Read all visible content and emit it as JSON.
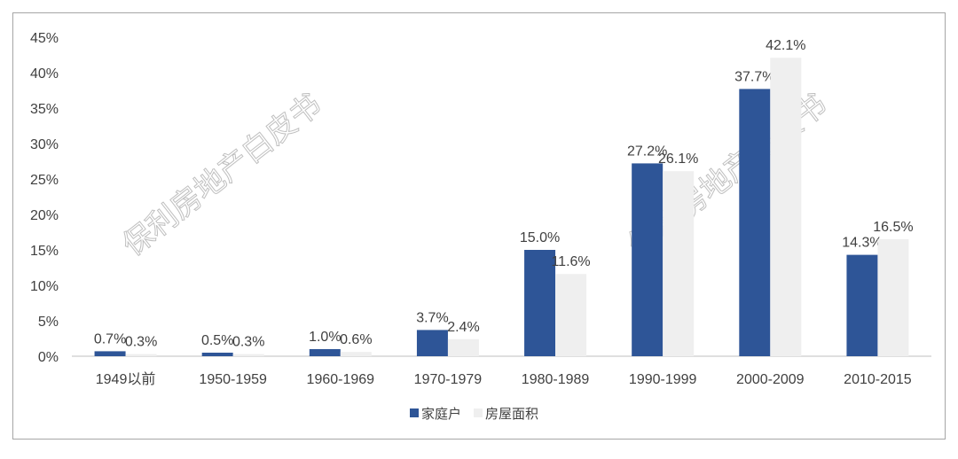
{
  "chart_data": {
    "type": "bar",
    "categories": [
      "1949以前",
      "1950-1959",
      "1960-1969",
      "1970-1979",
      "1980-1989",
      "1990-1999",
      "2000-2009",
      "2010-2015"
    ],
    "series": [
      {
        "name": "家庭户",
        "values": [
          0.7,
          0.5,
          1.0,
          3.7,
          15.0,
          27.2,
          37.7,
          14.3
        ],
        "labels": [
          "0.7%",
          "0.5%",
          "1.0%",
          "3.7%",
          "15.0%",
          "27.2%",
          "37.7%",
          "14.3%"
        ],
        "color": "#2e5597"
      },
      {
        "name": "房屋面积",
        "values": [
          0.3,
          0.3,
          0.6,
          2.4,
          11.6,
          26.1,
          42.1,
          16.5
        ],
        "labels": [
          "0.3%",
          "0.3%",
          "0.6%",
          "2.4%",
          "11.6%",
          "26.1%",
          "42.1%",
          "16.5%"
        ],
        "color": "#efefef"
      }
    ],
    "yticks": [
      "0%",
      "5%",
      "10%",
      "15%",
      "20%",
      "25%",
      "30%",
      "35%",
      "40%",
      "45%"
    ],
    "ylim": [
      0,
      45
    ],
    "legend_position": "bottom",
    "grid": false,
    "watermark": "保利房地产白皮书"
  }
}
